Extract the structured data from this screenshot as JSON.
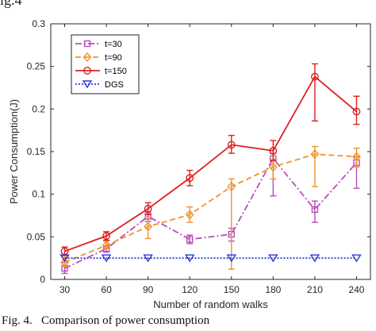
{
  "figure": {
    "header": "ig.4",
    "caption": "Fig. 4.   Comparison of power consumption"
  },
  "chart_data": {
    "type": "line",
    "title": "",
    "xlabel": "Number of random walks",
    "ylabel": "Power Consumption(J)",
    "x": [
      30,
      60,
      90,
      120,
      150,
      180,
      210,
      240
    ],
    "xlim": [
      20,
      250
    ],
    "ylim": [
      0,
      0.3
    ],
    "yticks": [
      0,
      0.05,
      0.1,
      0.15,
      0.2,
      0.25,
      0.3
    ],
    "ytick_labels": [
      "0",
      "0.05",
      "0.1",
      "0.15",
      "0.2",
      "0.25",
      "0.3"
    ],
    "xtick_labels": [
      "30",
      "60",
      "90",
      "120",
      "150",
      "180",
      "210",
      "240"
    ],
    "grid": false,
    "legend_position": "top-left",
    "series": [
      {
        "name": "t=30",
        "color": "#b84db8",
        "dash": "dashdot",
        "marker": "square",
        "values": [
          0.013,
          0.036,
          0.074,
          0.047,
          0.053,
          0.142,
          0.082,
          0.137
        ],
        "err_low": [
          0.007,
          0.032,
          0.068,
          0.042,
          0.045,
          0.098,
          0.067,
          0.107
        ],
        "err_high": [
          0.02,
          0.039,
          0.079,
          0.052,
          0.06,
          0.148,
          0.092,
          0.144
        ]
      },
      {
        "name": "t=90",
        "color": "#f0922a",
        "dash": "dash",
        "marker": "diamond",
        "values": [
          0.02,
          0.04,
          0.062,
          0.076,
          0.109,
          0.132,
          0.147,
          0.144
        ],
        "err_low": [
          0.015,
          0.036,
          0.048,
          0.067,
          0.012,
          0.118,
          0.109,
          0.132
        ],
        "err_high": [
          0.026,
          0.045,
          0.073,
          0.085,
          0.118,
          0.145,
          0.156,
          0.154
        ]
      },
      {
        "name": "t=150",
        "color": "#dd2020",
        "dash": "solid",
        "marker": "circle",
        "values": [
          0.033,
          0.051,
          0.083,
          0.119,
          0.158,
          0.151,
          0.238,
          0.197
        ],
        "err_low": [
          0.028,
          0.046,
          0.076,
          0.11,
          0.148,
          0.14,
          0.186,
          0.182
        ],
        "err_high": [
          0.038,
          0.056,
          0.09,
          0.128,
          0.169,
          0.163,
          0.253,
          0.215
        ]
      },
      {
        "name": "DGS",
        "color": "#2c3bd8",
        "dash": "dot",
        "marker": "triangle-down",
        "values": [
          0.025,
          0.025,
          0.025,
          0.025,
          0.025,
          0.025,
          0.025,
          0.025
        ]
      }
    ]
  }
}
